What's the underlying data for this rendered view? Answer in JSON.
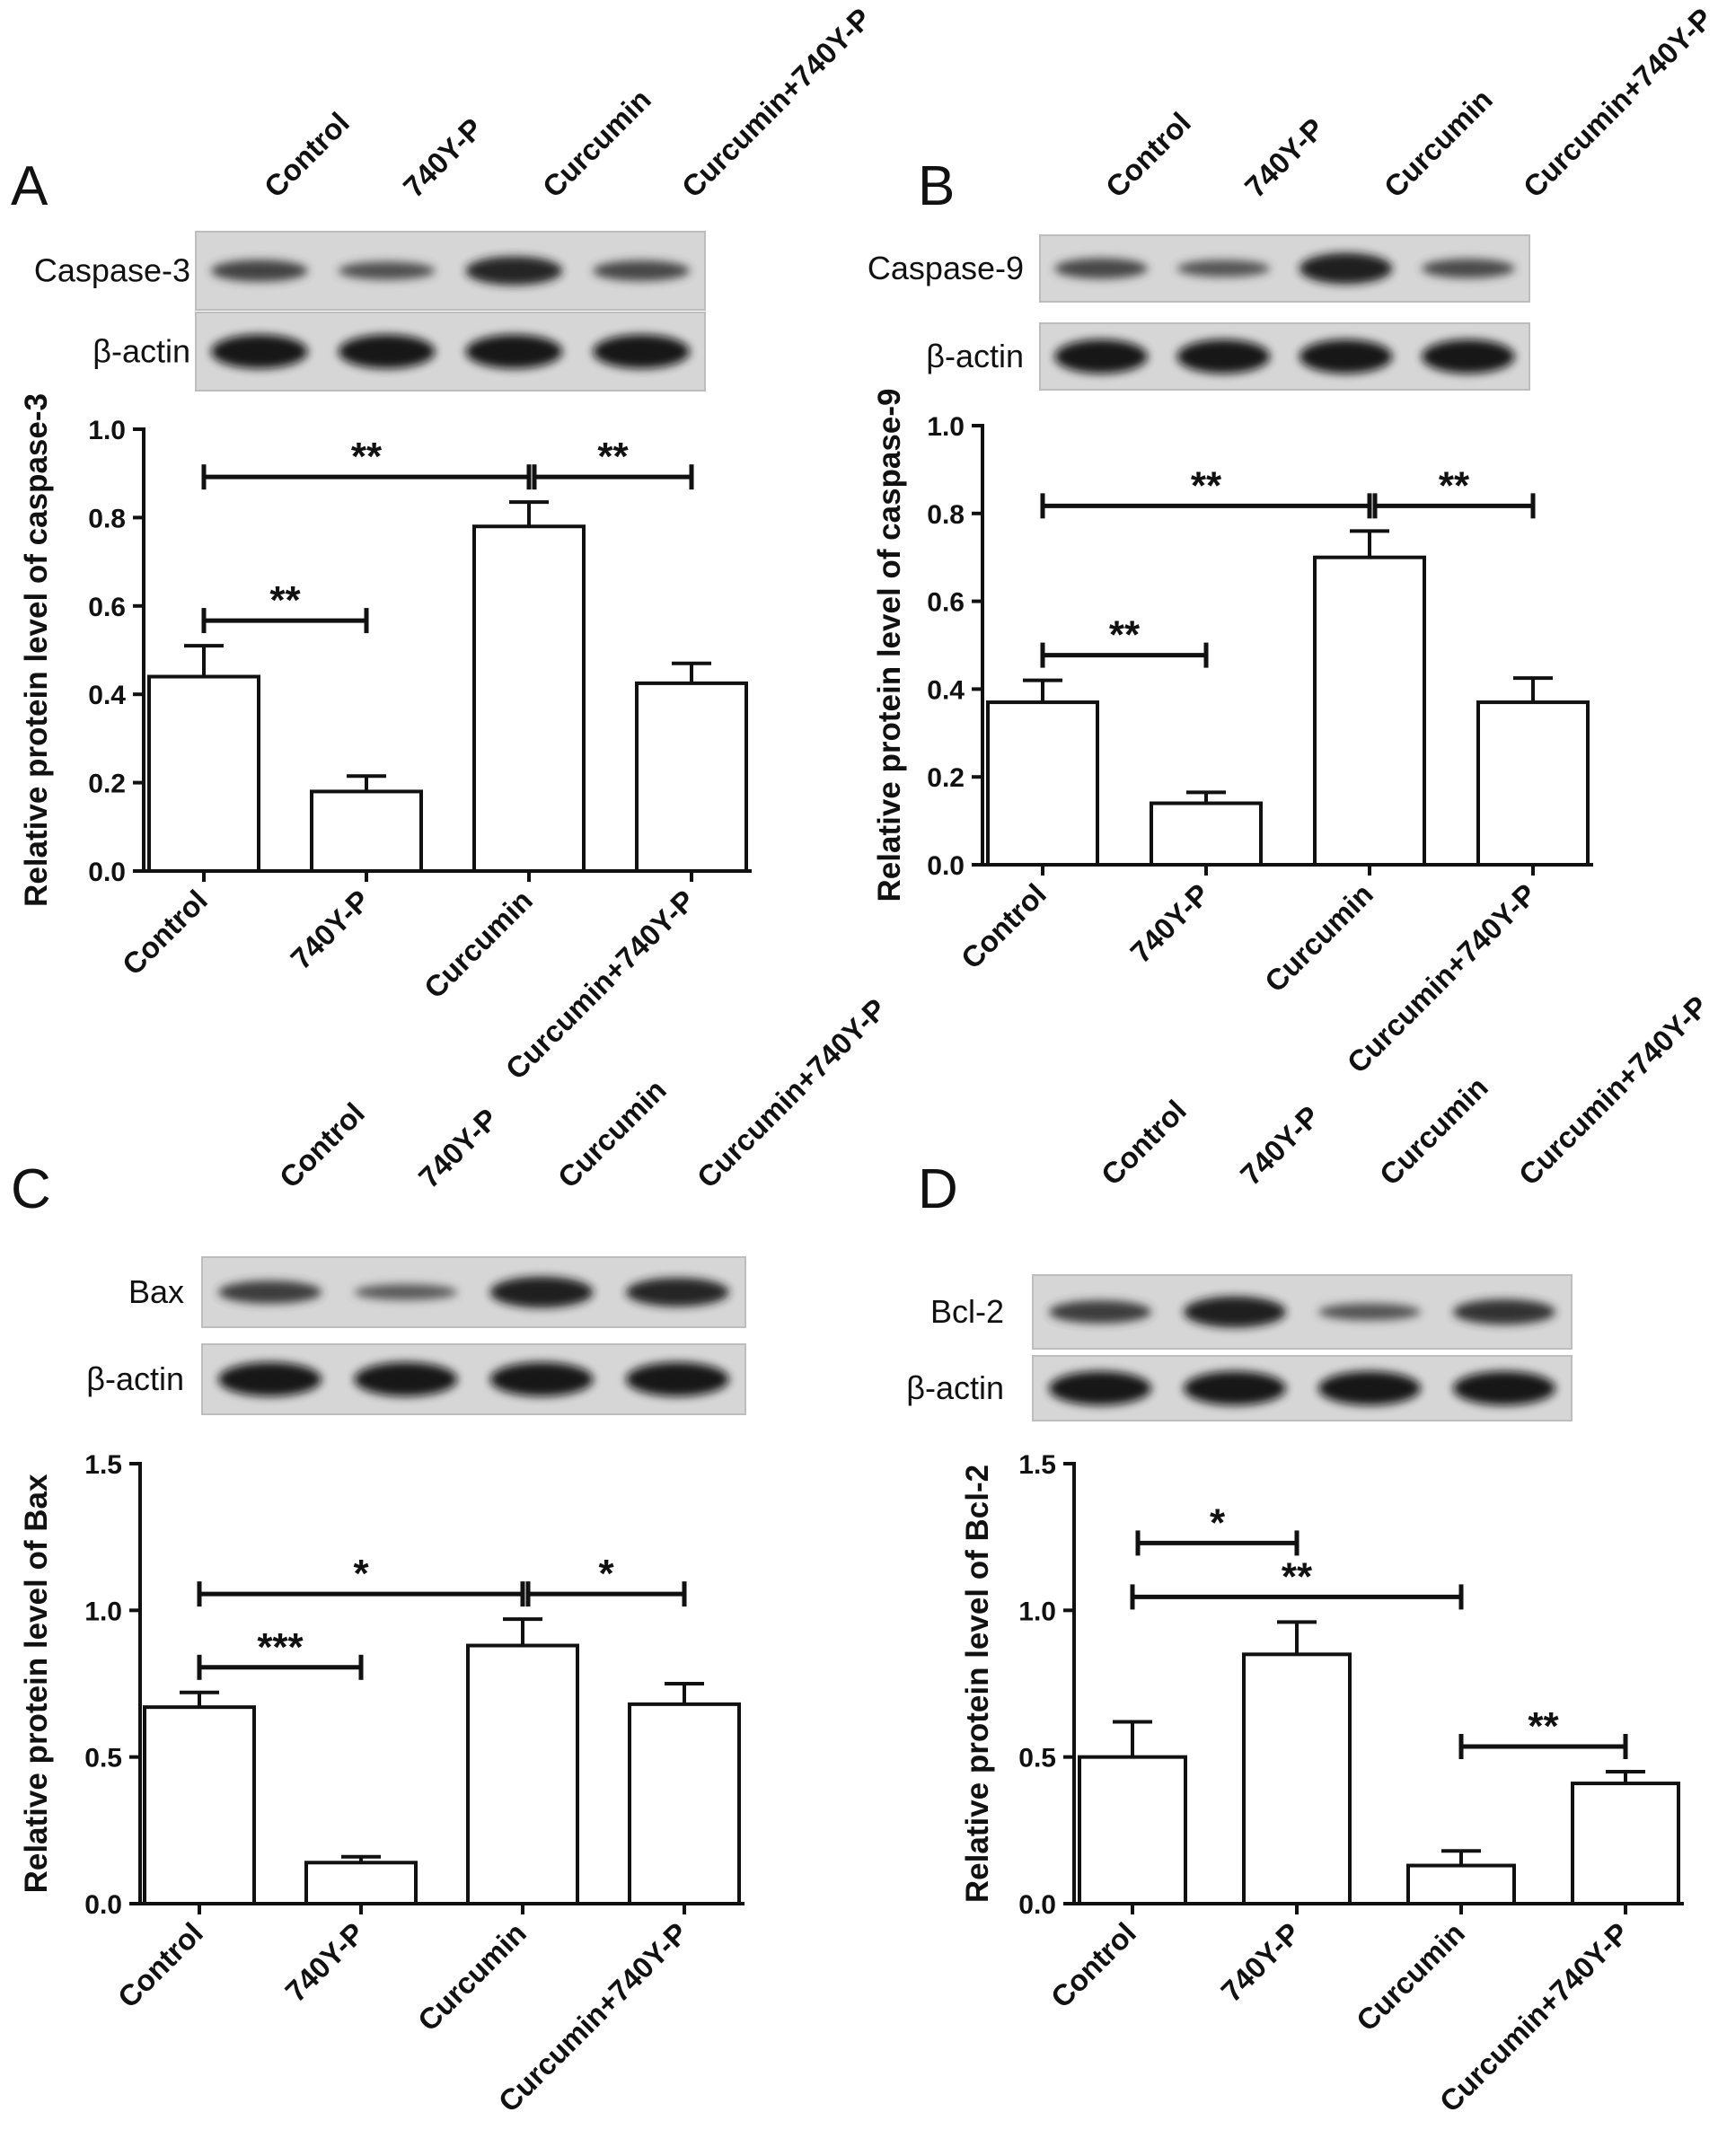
{
  "lanes": [
    "Control",
    "740Y-P",
    "Curcumin",
    "Curcumin+740Y-P"
  ],
  "loading_control": "β-actin",
  "panels": [
    {
      "letter": "A",
      "protein": "Caspase-3",
      "band_intensity": [
        0.55,
        0.4,
        0.85,
        0.5
      ]
    },
    {
      "letter": "B",
      "protein": "Caspase-9",
      "band_intensity": [
        0.5,
        0.35,
        0.95,
        0.45
      ]
    },
    {
      "letter": "C",
      "protein": "Bax",
      "band_intensity": [
        0.6,
        0.3,
        0.95,
        0.85
      ]
    },
    {
      "letter": "D",
      "protein": "Bcl-2",
      "band_intensity": [
        0.6,
        0.95,
        0.35,
        0.7
      ]
    }
  ],
  "chart_data": [
    {
      "type": "bar",
      "panel": "A",
      "ylabel": "Relative protein level of caspase-3",
      "categories": [
        "Control",
        "740Y-P",
        "Curcumin",
        "Curcumin+740Y-P"
      ],
      "values": [
        0.44,
        0.18,
        0.78,
        0.425
      ],
      "errors": [
        0.07,
        0.035,
        0.055,
        0.045
      ],
      "ylim": [
        0,
        1.0
      ],
      "yticks": [
        "0.0",
        "0.2",
        "0.4",
        "0.6",
        "0.8",
        "1.0"
      ],
      "significance": [
        {
          "from": 0,
          "to": 2,
          "label": "**"
        },
        {
          "from": 2,
          "to": 3,
          "label": "**"
        },
        {
          "from": 0,
          "to": 1,
          "label": "**"
        }
      ]
    },
    {
      "type": "bar",
      "panel": "B",
      "ylabel": "Relative protein level of caspase-9",
      "categories": [
        "Control",
        "740Y-P",
        "Curcumin",
        "Curcumin+740Y-P"
      ],
      "values": [
        0.37,
        0.14,
        0.7,
        0.37
      ],
      "errors": [
        0.05,
        0.025,
        0.06,
        0.055
      ],
      "ylim": [
        0,
        1.0
      ],
      "yticks": [
        "0.0",
        "0.2",
        "0.4",
        "0.6",
        "0.8",
        "1.0"
      ],
      "significance": [
        {
          "from": 0,
          "to": 2,
          "label": "**"
        },
        {
          "from": 2,
          "to": 3,
          "label": "**"
        },
        {
          "from": 0,
          "to": 1,
          "label": "**"
        }
      ]
    },
    {
      "type": "bar",
      "panel": "C",
      "ylabel": "Relative protein level of Bax",
      "categories": [
        "Control",
        "740Y-P",
        "Curcumin",
        "Curcumin+740Y-P"
      ],
      "values": [
        0.67,
        0.14,
        0.88,
        0.68
      ],
      "errors": [
        0.05,
        0.02,
        0.09,
        0.07
      ],
      "ylim": [
        0,
        1.5
      ],
      "yticks": [
        "0.0",
        "0.5",
        "1.0",
        "1.5"
      ],
      "significance": [
        {
          "from": 0,
          "to": 2,
          "label": "*"
        },
        {
          "from": 2,
          "to": 3,
          "label": "*"
        },
        {
          "from": 0,
          "to": 1,
          "label": "***"
        }
      ]
    },
    {
      "type": "bar",
      "panel": "D",
      "ylabel": "Relative protein level of Bcl-2",
      "categories": [
        "Control",
        "740Y-P",
        "Curcumin",
        "Curcumin+740Y-P"
      ],
      "values": [
        0.5,
        0.85,
        0.13,
        0.41
      ],
      "errors": [
        0.12,
        0.11,
        0.05,
        0.04
      ],
      "ylim": [
        0,
        1.5
      ],
      "yticks": [
        "0.0",
        "0.5",
        "1.0",
        "1.5"
      ],
      "significance": [
        {
          "from": 0,
          "to": 2,
          "label": "**"
        },
        {
          "from": 0,
          "to": 1,
          "label": "*"
        },
        {
          "from": 2,
          "to": 3,
          "label": "**"
        }
      ]
    }
  ]
}
